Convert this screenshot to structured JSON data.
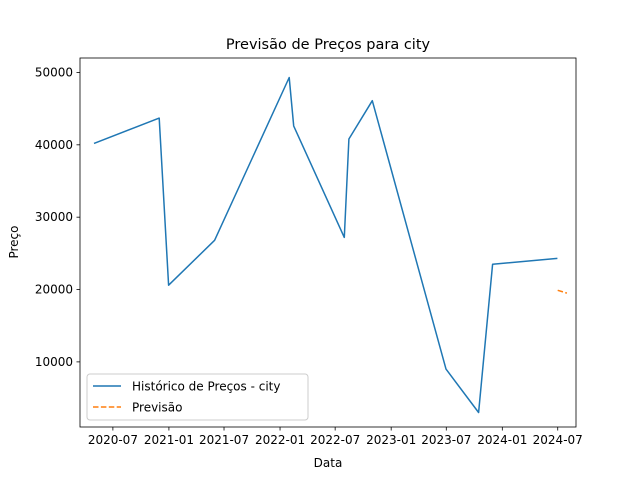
{
  "chart_data": {
    "type": "line",
    "title": "Previsão de Preços para city",
    "xlabel": "Data",
    "ylabel": "Preço",
    "xlim": [
      "2020-03-15",
      "2024-08-30"
    ],
    "ylim": [
      1000,
      52000
    ],
    "x_ticks": [
      "2020-07-01",
      "2021-01-01",
      "2021-07-01",
      "2022-01-01",
      "2022-07-01",
      "2023-01-01",
      "2023-07-01",
      "2024-01-01",
      "2024-07-01"
    ],
    "x_tick_labels": [
      "2020-07",
      "2021-01",
      "2021-07",
      "2022-01",
      "2022-07",
      "2023-01",
      "2023-07",
      "2024-01",
      "2024-07"
    ],
    "y_ticks": [
      10000,
      20000,
      30000,
      40000,
      50000
    ],
    "y_tick_labels": [
      "10000",
      "20000",
      "30000",
      "40000",
      "50000"
    ],
    "grid": false,
    "legend_position": "lower-left",
    "series": [
      {
        "name": "Histórico de Preços - city",
        "color": "#1f77b4",
        "style": "solid",
        "x": [
          "2020-04-30",
          "2020-11-30",
          "2020-12-31",
          "2021-05-31",
          "2022-01-31",
          "2022-02-15",
          "2022-07-31",
          "2022-08-15",
          "2022-10-31",
          "2023-06-30",
          "2023-10-15",
          "2023-11-30",
          "2024-06-30"
        ],
        "y": [
          40200,
          43700,
          20600,
          26800,
          49300,
          42600,
          27200,
          40800,
          46100,
          9000,
          3000,
          23500,
          24300
        ]
      },
      {
        "name": "Previsão",
        "color": "#ff7f0e",
        "style": "dashed",
        "x": [
          "2024-07-01",
          "2024-07-31"
        ],
        "y": [
          19900,
          19500
        ]
      }
    ]
  }
}
